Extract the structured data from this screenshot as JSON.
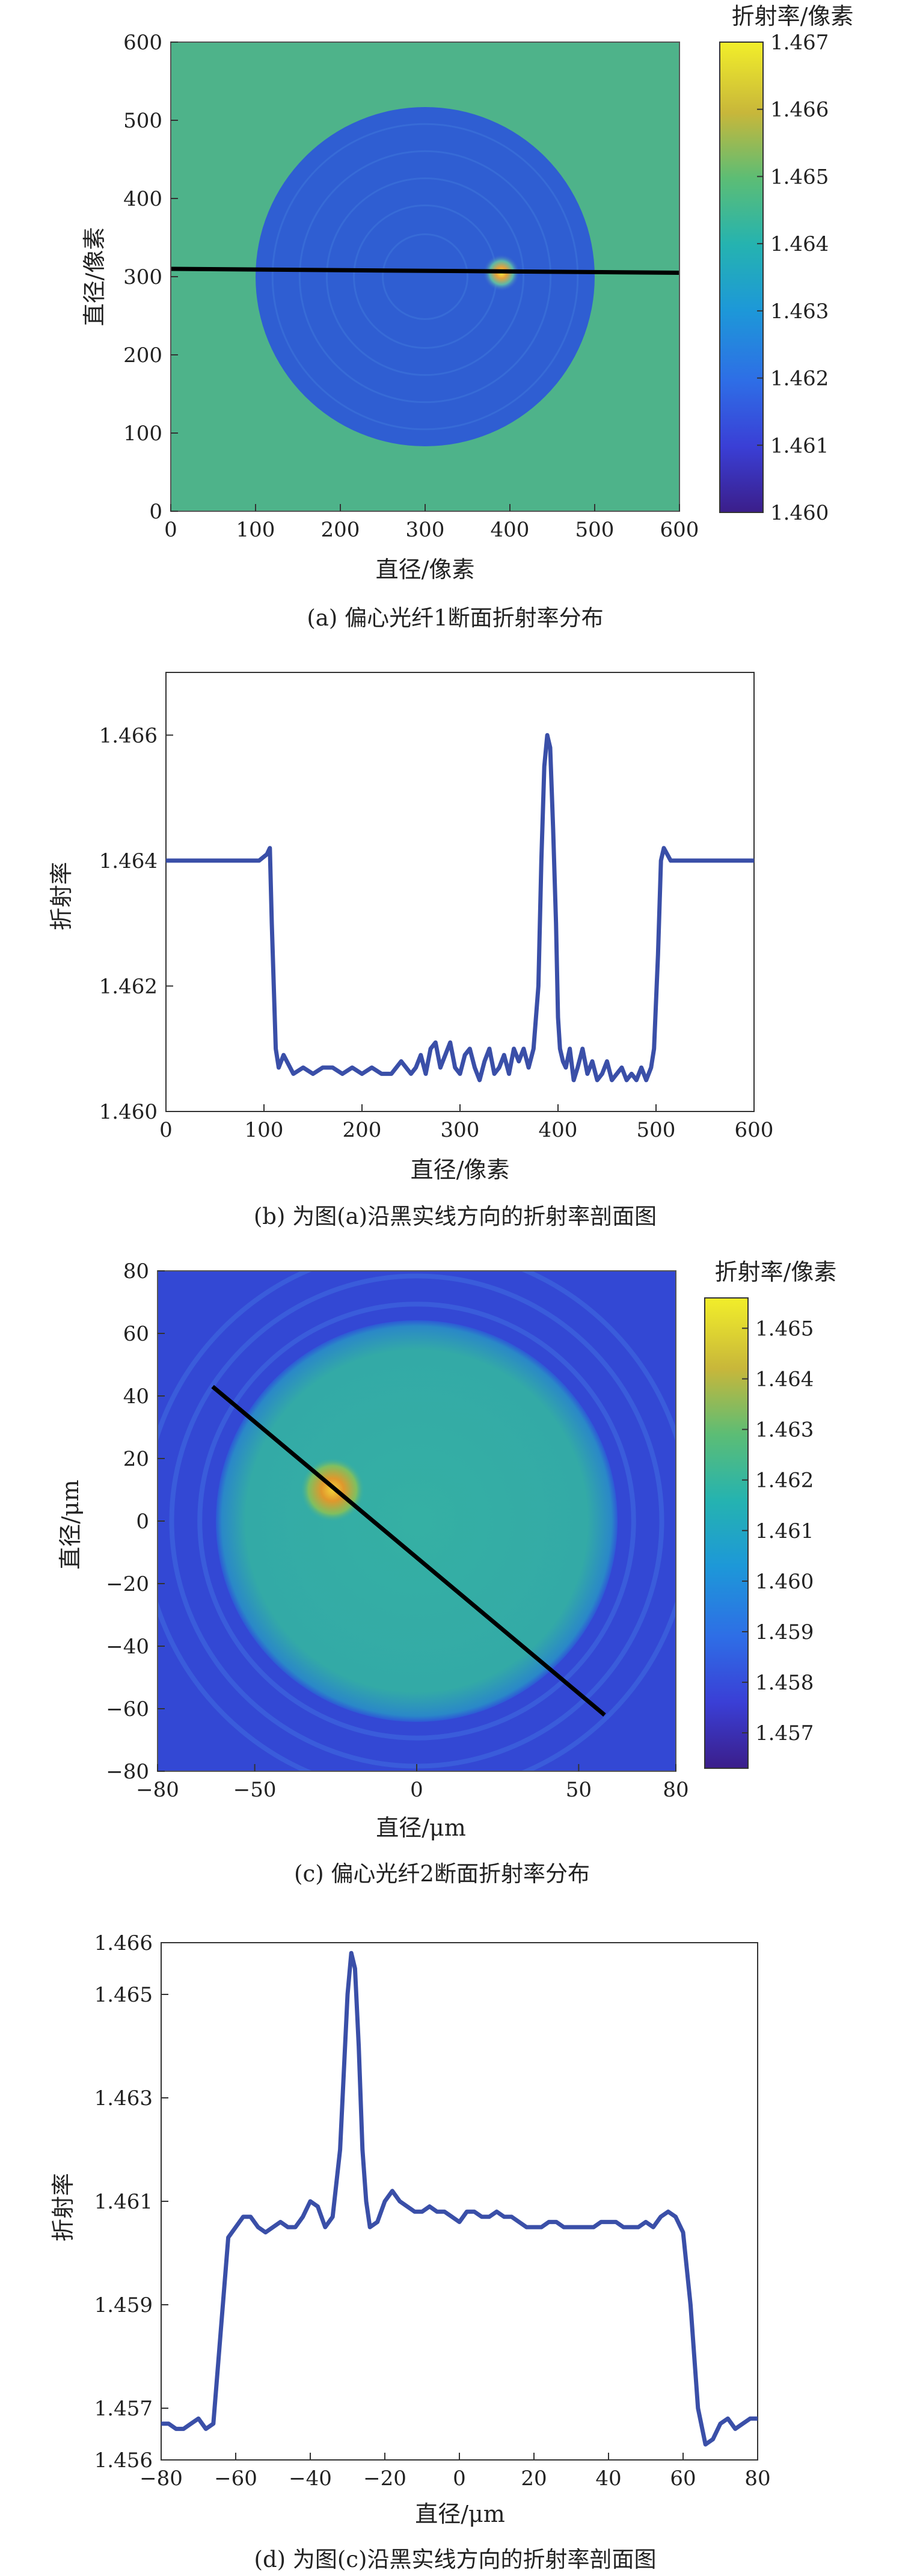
{
  "chart_data": [
    {
      "type": "heatmap",
      "panel": "a",
      "caption": "(a) 偏心光纤1断面折射率分布",
      "xlabel": "直径/像素",
      "ylabel": "直径/像素",
      "xlim": [
        0,
        600
      ],
      "ylim": [
        0,
        600
      ],
      "xticks": [
        "0",
        "100",
        "200",
        "300",
        "400",
        "500",
        "600"
      ],
      "yticks": [
        "0",
        "100",
        "200",
        "300",
        "400",
        "500",
        "600"
      ],
      "colorbar": {
        "label": "折射率/像素",
        "range": [
          1.46,
          1.467
        ],
        "ticks": [
          "1.460",
          "1.461",
          "1.462",
          "1.463",
          "1.464",
          "1.465",
          "1.466",
          "1.467"
        ]
      },
      "background_value": 1.464,
      "disk": {
        "center": [
          300,
          300
        ],
        "radius": 200,
        "value": 1.4607
      },
      "core": {
        "center": [
          390,
          305
        ],
        "radius": 12,
        "value": 1.466
      },
      "line": {
        "x": [
          0,
          600
        ],
        "y": [
          310,
          305
        ]
      },
      "colors": {
        "line": "#000000"
      }
    },
    {
      "type": "line",
      "panel": "b",
      "caption": "(b) 为图(a)沿黑实线方向的折射率剖面图",
      "xlabel": "直径/像素",
      "ylabel": "折射率",
      "xlim": [
        0,
        600
      ],
      "ylim": [
        1.46,
        1.467
      ],
      "xticks": [
        "0",
        "100",
        "200",
        "300",
        "400",
        "500",
        "600"
      ],
      "yticks": [
        "1.460",
        "1.462",
        "1.464",
        "1.466"
      ],
      "colors": {
        "line": "#3a4fa8"
      },
      "series": [
        {
          "x": [
            0,
            20,
            40,
            60,
            80,
            95,
            103,
            106,
            108,
            112,
            115,
            120,
            130,
            140,
            150,
            160,
            170,
            180,
            190,
            200,
            210,
            220,
            230,
            240,
            250,
            255,
            260,
            265,
            270,
            275,
            280,
            285,
            290,
            295,
            300,
            305,
            310,
            315,
            320,
            325,
            330,
            335,
            340,
            345,
            350,
            355,
            360,
            365,
            370,
            375,
            380,
            383,
            386,
            389,
            392,
            395,
            398,
            400,
            402,
            405,
            408,
            412,
            416,
            420,
            425,
            430,
            435,
            440,
            445,
            450,
            455,
            460,
            465,
            470,
            475,
            480,
            485,
            490,
            495,
            498,
            502,
            505,
            508,
            515,
            530,
            550,
            570,
            590,
            600
          ],
          "y": [
            1.464,
            1.464,
            1.464,
            1.464,
            1.464,
            1.464,
            1.4641,
            1.4642,
            1.463,
            1.461,
            1.4607,
            1.4609,
            1.4606,
            1.4607,
            1.4606,
            1.4607,
            1.4607,
            1.4606,
            1.4607,
            1.4606,
            1.4607,
            1.4606,
            1.4606,
            1.4608,
            1.4606,
            1.4607,
            1.4609,
            1.4606,
            1.461,
            1.4611,
            1.4607,
            1.4609,
            1.4611,
            1.4607,
            1.4606,
            1.4609,
            1.461,
            1.4607,
            1.4605,
            1.4608,
            1.461,
            1.4606,
            1.4607,
            1.4609,
            1.4606,
            1.461,
            1.4608,
            1.461,
            1.4607,
            1.461,
            1.462,
            1.464,
            1.4655,
            1.466,
            1.4658,
            1.4645,
            1.463,
            1.4615,
            1.461,
            1.4608,
            1.4607,
            1.461,
            1.4605,
            1.4607,
            1.461,
            1.4606,
            1.4608,
            1.4605,
            1.4606,
            1.4608,
            1.4605,
            1.4606,
            1.4607,
            1.4605,
            1.4606,
            1.4605,
            1.4607,
            1.4605,
            1.4607,
            1.461,
            1.4625,
            1.464,
            1.4642,
            1.464,
            1.464,
            1.464,
            1.464,
            1.464,
            1.464
          ]
        }
      ]
    },
    {
      "type": "heatmap",
      "panel": "c",
      "caption": "(c) 偏心光纤2断面折射率分布",
      "xlabel": "直径/μm",
      "ylabel": "直径/μm",
      "xlim": [
        -80,
        80
      ],
      "ylim": [
        -80,
        80
      ],
      "xticks": [
        "−80",
        "−50",
        "0",
        "50",
        "80"
      ],
      "xtick_values": [
        -80,
        -50,
        0,
        50,
        80
      ],
      "yticks": [
        "−80",
        "−60",
        "−40",
        "−20",
        "0",
        "20",
        "40",
        "60",
        "80"
      ],
      "colorbar": {
        "label": "折射率/像素",
        "range": [
          1.4563,
          1.4656
        ],
        "ticks": [
          "1.457",
          "1.458",
          "1.459",
          "1.460",
          "1.461",
          "1.462",
          "1.463",
          "1.464",
          "1.465"
        ]
      },
      "background_value": 1.457,
      "disk": {
        "center": [
          0,
          0
        ],
        "radius": 62,
        "value": 1.4607
      },
      "core": {
        "center": [
          -26,
          10
        ],
        "radius": 4.5,
        "value": 1.4645
      },
      "line": {
        "x": [
          -63,
          58
        ],
        "y": [
          43,
          -62
        ]
      },
      "colors": {
        "line": "#000000"
      }
    },
    {
      "type": "line",
      "panel": "d",
      "caption": "(d) 为图(c)沿黑实线方向的折射率剖面图",
      "xlabel": "直径/μm",
      "ylabel": "折射率",
      "xlim": [
        -80,
        80
      ],
      "ylim": [
        1.456,
        1.466
      ],
      "xticks": [
        "−80",
        "−60",
        "−40",
        "−20",
        "0",
        "20",
        "40",
        "60",
        "80"
      ],
      "xtick_values": [
        -80,
        -60,
        -40,
        -20,
        0,
        20,
        40,
        60,
        80
      ],
      "yticks": [
        "1.456",
        "1.457",
        "1.459",
        "1.461",
        "1.463",
        "1.465",
        "1.466"
      ],
      "ytick_values": [
        1.456,
        1.457,
        1.459,
        1.461,
        1.463,
        1.465,
        1.466
      ],
      "colors": {
        "line": "#3a4fa8"
      },
      "series": [
        {
          "x": [
            -80,
            -78,
            -76,
            -74,
            -72,
            -70,
            -68,
            -66,
            -64,
            -62,
            -60,
            -58,
            -56,
            -54,
            -52,
            -50,
            -48,
            -46,
            -44,
            -42,
            -40,
            -38,
            -36,
            -34,
            -32,
            -31,
            -30,
            -29,
            -28,
            -27,
            -26,
            -25,
            -24,
            -22,
            -20,
            -18,
            -16,
            -14,
            -12,
            -10,
            -8,
            -6,
            -4,
            -2,
            0,
            2,
            4,
            6,
            8,
            10,
            12,
            14,
            16,
            18,
            20,
            22,
            24,
            26,
            28,
            30,
            32,
            34,
            36,
            38,
            40,
            42,
            44,
            46,
            48,
            50,
            52,
            54,
            56,
            58,
            60,
            62,
            64,
            66,
            68,
            70,
            72,
            74,
            76,
            78,
            80
          ],
          "y": [
            1.4567,
            1.4567,
            1.4566,
            1.4566,
            1.4567,
            1.4568,
            1.4566,
            1.4567,
            1.4585,
            1.4603,
            1.4605,
            1.4607,
            1.4607,
            1.4605,
            1.4604,
            1.4605,
            1.4606,
            1.4605,
            1.4605,
            1.4607,
            1.461,
            1.4609,
            1.4605,
            1.4607,
            1.462,
            1.4635,
            1.465,
            1.4658,
            1.4655,
            1.464,
            1.462,
            1.461,
            1.4605,
            1.4606,
            1.461,
            1.4612,
            1.461,
            1.4609,
            1.4608,
            1.4608,
            1.4609,
            1.4608,
            1.4608,
            1.4607,
            1.4606,
            1.4608,
            1.4608,
            1.4607,
            1.4607,
            1.4608,
            1.4607,
            1.4607,
            1.4606,
            1.4605,
            1.4605,
            1.4605,
            1.4606,
            1.4606,
            1.4605,
            1.4605,
            1.4605,
            1.4605,
            1.4605,
            1.4606,
            1.4606,
            1.4606,
            1.4605,
            1.4605,
            1.4605,
            1.4606,
            1.4605,
            1.4607,
            1.4608,
            1.4607,
            1.4604,
            1.459,
            1.457,
            1.4563,
            1.4564,
            1.4567,
            1.4568,
            1.4566,
            1.4567,
            1.4568,
            1.4568
          ]
        }
      ]
    }
  ]
}
